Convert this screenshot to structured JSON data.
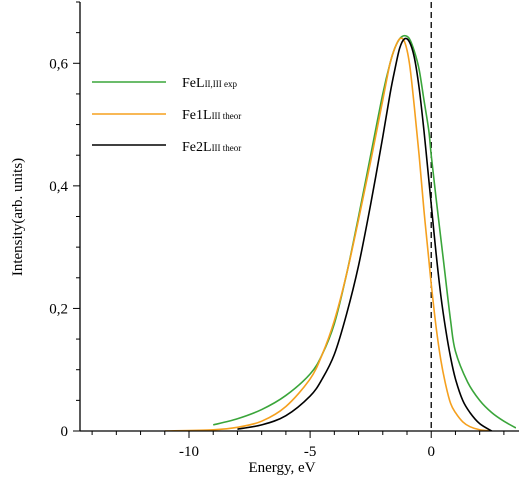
{
  "chart_data": {
    "type": "line",
    "xlabel": "Energy, eV",
    "ylabel": "Intensity(arb. units)",
    "xlim": [
      -14.5,
      3.5
    ],
    "ylim": [
      0,
      0.7
    ],
    "x_ticks": [
      {
        "value": -10,
        "label": "-10"
      },
      {
        "value": -5,
        "label": "-5"
      },
      {
        "value": 0,
        "label": "0"
      }
    ],
    "x_minor_step": 1,
    "y_ticks": [
      {
        "value": 0,
        "label": "0"
      },
      {
        "value": 0.2,
        "label": "0,2"
      },
      {
        "value": 0.4,
        "label": "0,4"
      },
      {
        "value": 0.6,
        "label": "0,6"
      }
    ],
    "y_minor_step": 0.05,
    "reference_line": {
      "x": 0,
      "style": "dashed",
      "color": "#000000"
    },
    "grid": false,
    "legend": {
      "position": "top-left",
      "entries": [
        {
          "main": "FeL",
          "sub": "II,III exp",
          "color": "#3aa53a"
        },
        {
          "main": "Fe1L",
          "sub": "III theor",
          "color": "#f5a01e"
        },
        {
          "main": "Fe2L",
          "sub": "III theor",
          "color": "#000000"
        }
      ]
    },
    "series": [
      {
        "color": "#3aa53a",
        "x": [
          -9.0,
          -8.0,
          -7.0,
          -6.0,
          -5.0,
          -4.5,
          -4.0,
          -3.5,
          -3.0,
          -2.5,
          -2.0,
          -1.7,
          -1.5,
          -1.3,
          -1.1,
          -0.9,
          -0.7,
          -0.5,
          -0.3,
          -0.1,
          0.0,
          0.2,
          0.5,
          0.8,
          1.0,
          1.5,
          2.0,
          2.5,
          3.0,
          3.5
        ],
        "y": [
          0.01,
          0.02,
          0.035,
          0.058,
          0.093,
          0.125,
          0.175,
          0.255,
          0.35,
          0.45,
          0.55,
          0.6,
          0.625,
          0.64,
          0.645,
          0.64,
          0.62,
          0.59,
          0.54,
          0.49,
          0.45,
          0.38,
          0.28,
          0.18,
          0.13,
          0.08,
          0.05,
          0.03,
          0.016,
          0.005
        ]
      },
      {
        "color": "#f5a01e",
        "x": [
          -11.0,
          -9.0,
          -8.0,
          -7.0,
          -6.0,
          -5.0,
          -4.5,
          -4.0,
          -3.5,
          -3.0,
          -2.5,
          -2.0,
          -1.7,
          -1.5,
          -1.3,
          -1.1,
          -0.9,
          -0.7,
          -0.5,
          -0.3,
          -0.1,
          0.0,
          0.2,
          0.4,
          0.6,
          0.8,
          1.0,
          1.3,
          1.6,
          2.0,
          2.5
        ],
        "y": [
          0.0,
          0.002,
          0.006,
          0.016,
          0.04,
          0.085,
          0.125,
          0.18,
          0.255,
          0.345,
          0.44,
          0.54,
          0.6,
          0.625,
          0.64,
          0.635,
          0.6,
          0.53,
          0.45,
          0.36,
          0.28,
          0.24,
          0.17,
          0.115,
          0.075,
          0.045,
          0.03,
          0.015,
          0.007,
          0.002,
          0.0
        ]
      },
      {
        "color": "#000000",
        "x": [
          -8.0,
          -7.0,
          -6.0,
          -5.0,
          -4.5,
          -4.0,
          -3.5,
          -3.0,
          -2.5,
          -2.0,
          -1.7,
          -1.5,
          -1.3,
          -1.1,
          -0.9,
          -0.7,
          -0.5,
          -0.3,
          -0.1,
          0.0,
          0.2,
          0.4,
          0.6,
          0.8,
          1.0,
          1.3,
          1.6,
          2.0,
          2.5
        ],
        "y": [
          0.003,
          0.01,
          0.025,
          0.057,
          0.085,
          0.125,
          0.19,
          0.27,
          0.37,
          0.48,
          0.55,
          0.59,
          0.625,
          0.64,
          0.635,
          0.61,
          0.56,
          0.49,
          0.41,
          0.37,
          0.29,
          0.22,
          0.165,
          0.12,
          0.085,
          0.05,
          0.03,
          0.012,
          0.0
        ]
      }
    ]
  }
}
